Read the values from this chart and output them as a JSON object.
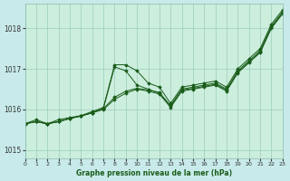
{
  "xlabel": "Graphe pression niveau de la mer (hPa)",
  "bg_color": "#c8eaea",
  "plot_bg_color": "#cceedd",
  "line_color": "#1a5c1a",
  "grid_color": "#99ccbb",
  "xlim": [
    0,
    23
  ],
  "ylim": [
    1014.8,
    1018.6
  ],
  "yticks": [
    1015,
    1016,
    1017,
    1018
  ],
  "xticks": [
    0,
    1,
    2,
    3,
    4,
    5,
    6,
    7,
    8,
    9,
    10,
    11,
    12,
    13,
    14,
    15,
    16,
    17,
    18,
    19,
    20,
    21,
    22,
    23
  ],
  "series": [
    [
      1015.65,
      1015.75,
      1015.65,
      1015.75,
      1015.8,
      1015.85,
      1015.95,
      1016.05,
      1017.1,
      1017.1,
      1016.95,
      1016.65,
      1016.55,
      1016.15,
      1016.55,
      1016.6,
      1016.65,
      1016.7,
      1016.55,
      1017.0,
      1017.25,
      1017.5,
      1018.1,
      1018.45
    ],
    [
      1015.65,
      1015.7,
      1015.65,
      1015.7,
      1015.78,
      1015.84,
      1015.92,
      1016.02,
      1017.05,
      1016.95,
      1016.6,
      1016.5,
      1016.4,
      1016.1,
      1016.5,
      1016.55,
      1016.6,
      1016.65,
      1016.5,
      1016.95,
      1017.2,
      1017.45,
      1018.05,
      1018.4
    ],
    [
      1015.65,
      1015.7,
      1015.65,
      1015.7,
      1015.78,
      1015.84,
      1015.92,
      1016.02,
      1016.3,
      1016.45,
      1016.52,
      1016.48,
      1016.42,
      1016.08,
      1016.48,
      1016.52,
      1016.57,
      1016.62,
      1016.48,
      1016.92,
      1017.17,
      1017.42,
      1018.02,
      1018.38
    ],
    [
      1015.65,
      1015.7,
      1015.65,
      1015.7,
      1015.78,
      1015.84,
      1015.92,
      1016.0,
      1016.25,
      1016.4,
      1016.5,
      1016.45,
      1016.38,
      1016.05,
      1016.45,
      1016.5,
      1016.55,
      1016.6,
      1016.45,
      1016.9,
      1017.15,
      1017.4,
      1018.0,
      1018.35
    ]
  ]
}
